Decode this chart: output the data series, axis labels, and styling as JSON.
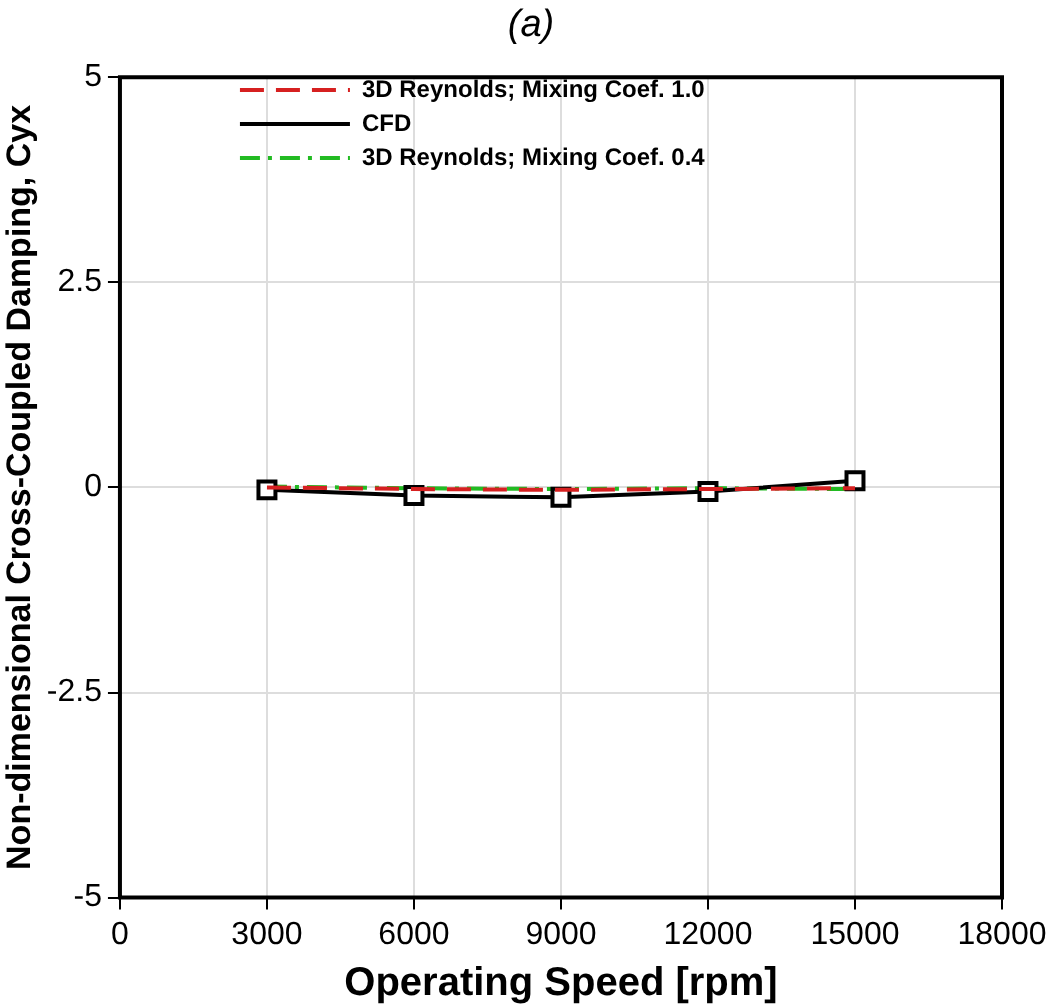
{
  "chart_data": {
    "type": "line",
    "title": "(a)",
    "xlabel": "Operating Speed [rpm]",
    "ylabel": "Non-dimensional Cross-Coupled Damping, Cyx",
    "x": [
      3000,
      6000,
      9000,
      12000,
      15000
    ],
    "series": [
      {
        "name": "3D Reynolds; Mixing Coef. 1.0",
        "color": "#d62020",
        "values": [
          0,
          -0.02,
          -0.03,
          -0.02,
          -0.01
        ],
        "line_style": "dashed",
        "marker": "none"
      },
      {
        "name": "CFD",
        "color": "#000000",
        "values": [
          -0.03,
          -0.1,
          -0.12,
          -0.05,
          0.08
        ],
        "line_style": "solid",
        "marker": "square"
      },
      {
        "name": "3D Reynolds; Mixing Coef. 0.4",
        "color": "#22bb22",
        "values": [
          0.01,
          -0.01,
          -0.02,
          -0.01,
          -0.02
        ],
        "line_style": "dashdot",
        "marker": "none"
      }
    ],
    "xlim": [
      0,
      18000
    ],
    "xticks": [
      0,
      3000,
      6000,
      9000,
      12000,
      15000,
      18000
    ],
    "ylim": [
      -5,
      5
    ],
    "yticks": [
      -5,
      -2.5,
      0,
      2.5,
      5
    ],
    "grid": true,
    "legend": "top"
  }
}
